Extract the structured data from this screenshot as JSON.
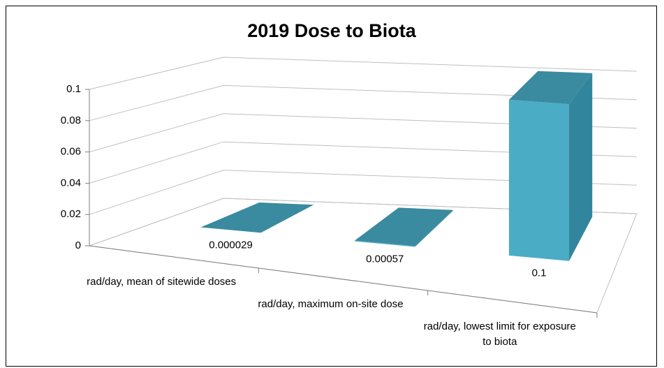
{
  "chart_data": {
    "type": "bar3d",
    "title": "2019 Dose to Biota",
    "categories": [
      "rad/day, mean of sitewide doses",
      "rad/day, maximum on-site dose",
      "rad/day, lowest limit for exposure to biota"
    ],
    "values": [
      2.9e-05,
      0.00057,
      0.1
    ],
    "color": "#4bacc6",
    "ylim": [
      0,
      0.1
    ],
    "yticks": [
      0,
      0.02,
      0.04,
      0.06,
      0.08,
      0.1
    ],
    "grid": true
  }
}
